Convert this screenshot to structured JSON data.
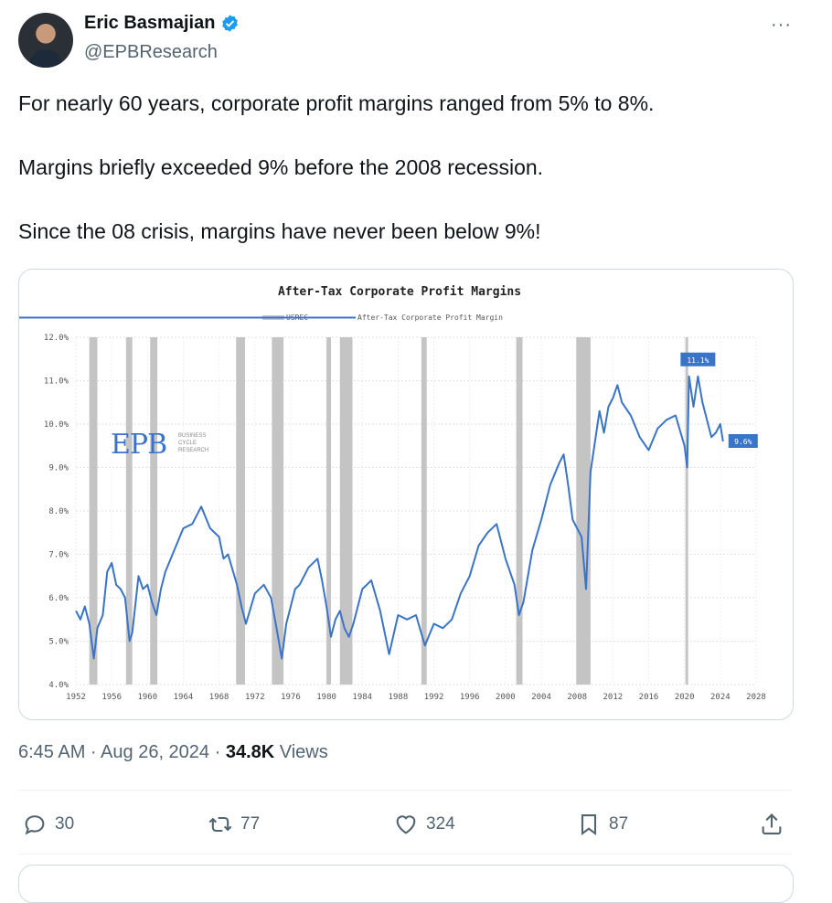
{
  "author": {
    "name": "Eric Basmajian",
    "handle": "@EPBResearch",
    "verified_color": "#1d9bf0"
  },
  "menu_icon": "more-icon",
  "tweet_text": "For nearly 60 years, corporate profit margins ranged from 5% to 8%.\n\nMargins briefly exceeded 9% before the 2008 recession.\n\nSince the 08 crisis, margins have never been below 9%!",
  "chart_data": {
    "type": "line",
    "title": "After-Tax Corporate Profit Margins",
    "legend": [
      "USREC",
      "After-Tax Corporate Profit Margin"
    ],
    "legend_position": "top-center",
    "xlim": [
      1952,
      2028
    ],
    "ylim": [
      4.0,
      12.0
    ],
    "x_ticks": [
      "1952",
      "1956",
      "1960",
      "1964",
      "1968",
      "1972",
      "1976",
      "1980",
      "1984",
      "1988",
      "1992",
      "1996",
      "2000",
      "2004",
      "2008",
      "2012",
      "2016",
      "2020",
      "2024",
      "2028"
    ],
    "y_ticks": [
      "4.0%",
      "5.0%",
      "6.0%",
      "7.0%",
      "8.0%",
      "9.0%",
      "10.0%",
      "11.0%",
      "12.0%"
    ],
    "grid": true,
    "series_color": "#3a74c8",
    "recession_color": "#c4c4c4",
    "recessions": [
      [
        1953.5,
        1954.4
      ],
      [
        1957.6,
        1958.3
      ],
      [
        1960.3,
        1961.1
      ],
      [
        1969.9,
        1970.9
      ],
      [
        1973.9,
        1975.2
      ],
      [
        1980.0,
        1980.5
      ],
      [
        1981.5,
        1982.9
      ],
      [
        1990.6,
        1991.2
      ],
      [
        2001.2,
        2001.9
      ],
      [
        2007.9,
        2009.5
      ],
      [
        2020.1,
        2020.4
      ]
    ],
    "series": [
      {
        "name": "After-Tax Corporate Profit Margin",
        "x": [
          1952.0,
          1952.5,
          1953.0,
          1953.5,
          1954.0,
          1954.4,
          1955.0,
          1955.5,
          1956.0,
          1956.5,
          1957.0,
          1957.5,
          1958.0,
          1958.3,
          1959.0,
          1959.5,
          1960.0,
          1960.5,
          1961.0,
          1961.5,
          1962.0,
          1963.0,
          1964.0,
          1965.0,
          1966.0,
          1967.0,
          1968.0,
          1968.5,
          1969.0,
          1970.0,
          1970.5,
          1971.0,
          1972.0,
          1973.0,
          1973.8,
          1974.5,
          1975.0,
          1975.5,
          1976.5,
          1977.0,
          1978.0,
          1979.0,
          1979.5,
          1980.0,
          1980.5,
          1981.0,
          1981.5,
          1982.0,
          1982.5,
          1983.0,
          1984.0,
          1985.0,
          1986.0,
          1987.0,
          1988.0,
          1989.0,
          1990.0,
          1991.0,
          1991.2,
          1992.0,
          1993.0,
          1994.0,
          1995.0,
          1996.0,
          1997.0,
          1998.0,
          1999.0,
          2000.0,
          2001.0,
          2001.5,
          2002.0,
          2003.0,
          2004.0,
          2005.0,
          2006.0,
          2006.5,
          2007.0,
          2007.5,
          2008.5,
          2009.0,
          2009.5,
          2010.0,
          2010.5,
          2011.0,
          2011.5,
          2012.0,
          2012.5,
          2013.0,
          2014.0,
          2015.0,
          2016.0,
          2017.0,
          2018.0,
          2019.0,
          2020.0,
          2020.3,
          2020.5,
          2021.0,
          2021.5,
          2022.0,
          2022.5,
          2023.0,
          2023.5,
          2024.0,
          2024.3
        ],
        "values": [
          5.7,
          5.5,
          5.8,
          5.4,
          4.6,
          5.3,
          5.6,
          6.6,
          6.8,
          6.3,
          6.2,
          6.0,
          5.0,
          5.2,
          6.5,
          6.2,
          6.3,
          5.9,
          5.6,
          6.2,
          6.6,
          7.1,
          7.6,
          7.7,
          8.1,
          7.6,
          7.4,
          6.9,
          7.0,
          6.3,
          5.8,
          5.4,
          6.1,
          6.3,
          6.0,
          5.2,
          4.6,
          5.4,
          6.2,
          6.3,
          6.7,
          6.9,
          6.4,
          5.8,
          5.1,
          5.5,
          5.7,
          5.3,
          5.1,
          5.4,
          6.2,
          6.4,
          5.7,
          4.7,
          5.6,
          5.5,
          5.6,
          4.9,
          5.0,
          5.4,
          5.3,
          5.5,
          6.1,
          6.5,
          7.2,
          7.5,
          7.7,
          6.9,
          6.3,
          5.6,
          5.9,
          7.1,
          7.8,
          8.6,
          9.1,
          9.3,
          8.6,
          7.8,
          7.4,
          6.2,
          8.9,
          9.6,
          10.3,
          9.8,
          10.4,
          10.6,
          10.9,
          10.5,
          10.2,
          9.7,
          9.4,
          9.9,
          10.1,
          10.2,
          9.5,
          9.0,
          11.1,
          10.4,
          11.1,
          10.5,
          10.1,
          9.7,
          9.8,
          10.0,
          9.6
        ]
      }
    ],
    "annotations": [
      {
        "text": "11.1%",
        "x": 2021.5,
        "y": 11.1
      },
      {
        "text": "9.6%",
        "x": 2024.3,
        "y": 9.6
      }
    ],
    "watermark": {
      "logo": "EPB",
      "lines": [
        "BUSINESS",
        "CYCLE",
        "RESEARCH"
      ]
    }
  },
  "timestamp": {
    "time_date": "6:45 AM · Aug 26, 2024 · ",
    "views_count": "34.8K",
    "views_label": " Views"
  },
  "actions": {
    "reply": {
      "icon": "reply-icon",
      "count": "30"
    },
    "repost": {
      "icon": "repost-icon",
      "count": "77"
    },
    "like": {
      "icon": "heart-icon",
      "count": "324"
    },
    "bookmark": {
      "icon": "bookmark-icon",
      "count": "87"
    },
    "share": {
      "icon": "share-icon"
    }
  }
}
